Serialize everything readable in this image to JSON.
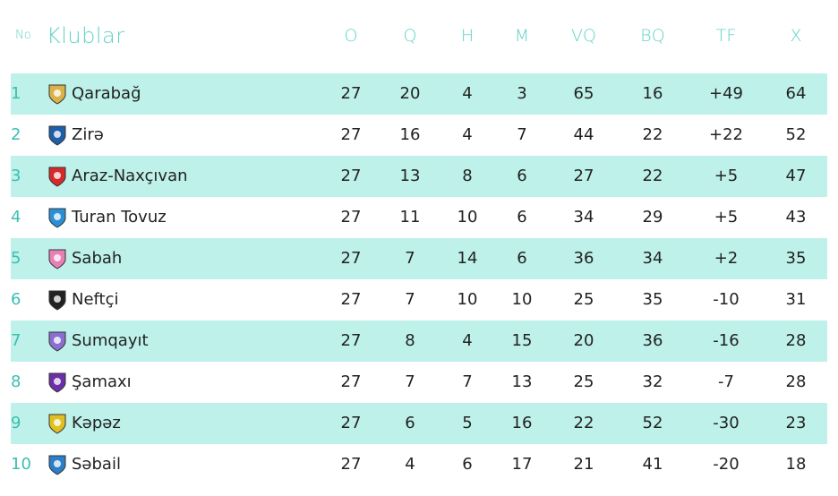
{
  "header": {
    "no": "No",
    "club": "Klublar",
    "cols": [
      "O",
      "Q",
      "H",
      "M",
      "VQ",
      "BQ",
      "TF",
      "X"
    ]
  },
  "rows": [
    {
      "no": "1",
      "club": "Qarabağ",
      "vals": [
        "27",
        "20",
        "4",
        "3",
        "65",
        "16",
        "+49",
        "64"
      ],
      "logo_color": "#d9b24a"
    },
    {
      "no": "2",
      "club": "Zirə",
      "vals": [
        "27",
        "16",
        "4",
        "7",
        "44",
        "22",
        "+22",
        "52"
      ],
      "logo_color": "#1e5fa8"
    },
    {
      "no": "3",
      "club": "Araz-Naxçıvan",
      "vals": [
        "27",
        "13",
        "8",
        "6",
        "27",
        "22",
        "+5",
        "47"
      ],
      "logo_color": "#d62a2a"
    },
    {
      "no": "4",
      "club": "Turan Tovuz",
      "vals": [
        "27",
        "11",
        "10",
        "6",
        "34",
        "29",
        "+5",
        "43"
      ],
      "logo_color": "#2a8fd6"
    },
    {
      "no": "5",
      "club": "Sabah",
      "vals": [
        "27",
        "7",
        "14",
        "6",
        "36",
        "34",
        "+2",
        "35"
      ],
      "logo_color": "#e87fb5"
    },
    {
      "no": "6",
      "club": "Neftçi",
      "vals": [
        "27",
        "7",
        "10",
        "10",
        "25",
        "35",
        "-10",
        "31"
      ],
      "logo_color": "#222222"
    },
    {
      "no": "7",
      "club": "Sumqayıt",
      "vals": [
        "27",
        "8",
        "4",
        "15",
        "20",
        "36",
        "-16",
        "28"
      ],
      "logo_color": "#8a6fd1"
    },
    {
      "no": "8",
      "club": "Şamaxı",
      "vals": [
        "27",
        "7",
        "7",
        "13",
        "25",
        "32",
        "-7",
        "28"
      ],
      "logo_color": "#6b2fa8"
    },
    {
      "no": "9",
      "club": "Kəpəz",
      "vals": [
        "27",
        "6",
        "5",
        "16",
        "22",
        "52",
        "-30",
        "23"
      ],
      "logo_color": "#e0c020"
    },
    {
      "no": "10",
      "club": "Səbail",
      "vals": [
        "27",
        "4",
        "6",
        "17",
        "21",
        "41",
        "-20",
        "18"
      ],
      "logo_color": "#2a7fc8"
    }
  ]
}
